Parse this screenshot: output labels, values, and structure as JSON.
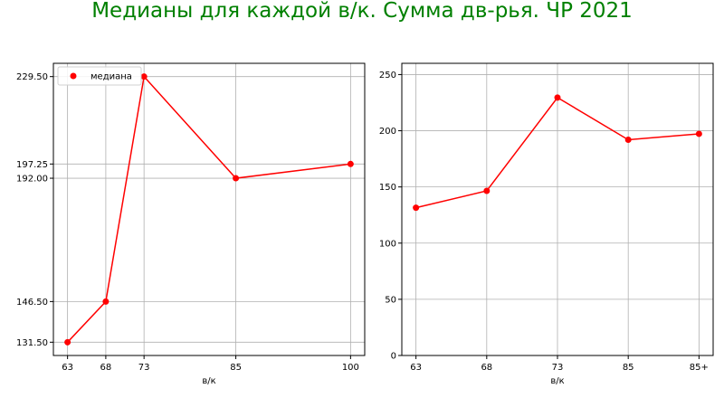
{
  "figure": {
    "suptitle": "Медианы для каждой в/к. Сумма дв-рья. ЧР 2021",
    "title_color": "#008000"
  },
  "chart_data": [
    {
      "type": "line",
      "x": [
        63,
        68,
        73,
        85,
        100
      ],
      "series": [
        {
          "name": "медиана",
          "values": [
            131.5,
            146.5,
            229.5,
            192.0,
            197.25
          ],
          "color": "#ff0000",
          "marker": "circle"
        }
      ],
      "xlabel": "в/к",
      "ylabel": "",
      "xticks": [
        63,
        68,
        73,
        85,
        100
      ],
      "yticks": [
        131.5,
        146.5,
        192.0,
        197.25,
        229.5
      ],
      "ytick_labels": [
        "131.50",
        "146.50",
        "192.00",
        "197.25",
        "229.50"
      ],
      "xlim": [
        61.15,
        101.85
      ],
      "ylim": [
        126.6,
        234.4
      ],
      "grid": true,
      "legend_position": "top-left"
    },
    {
      "type": "line",
      "categories": [
        "63",
        "68",
        "73",
        "85",
        "85+"
      ],
      "series": [
        {
          "values": [
            131.5,
            146.5,
            229.5,
            192.0,
            197.25
          ],
          "color": "#ff0000",
          "marker": "circle"
        }
      ],
      "xlabel": "в/к",
      "ylabel": "",
      "yticks": [
        0,
        50,
        100,
        150,
        200,
        250
      ],
      "ylim": [
        0,
        260
      ],
      "grid": true
    }
  ]
}
